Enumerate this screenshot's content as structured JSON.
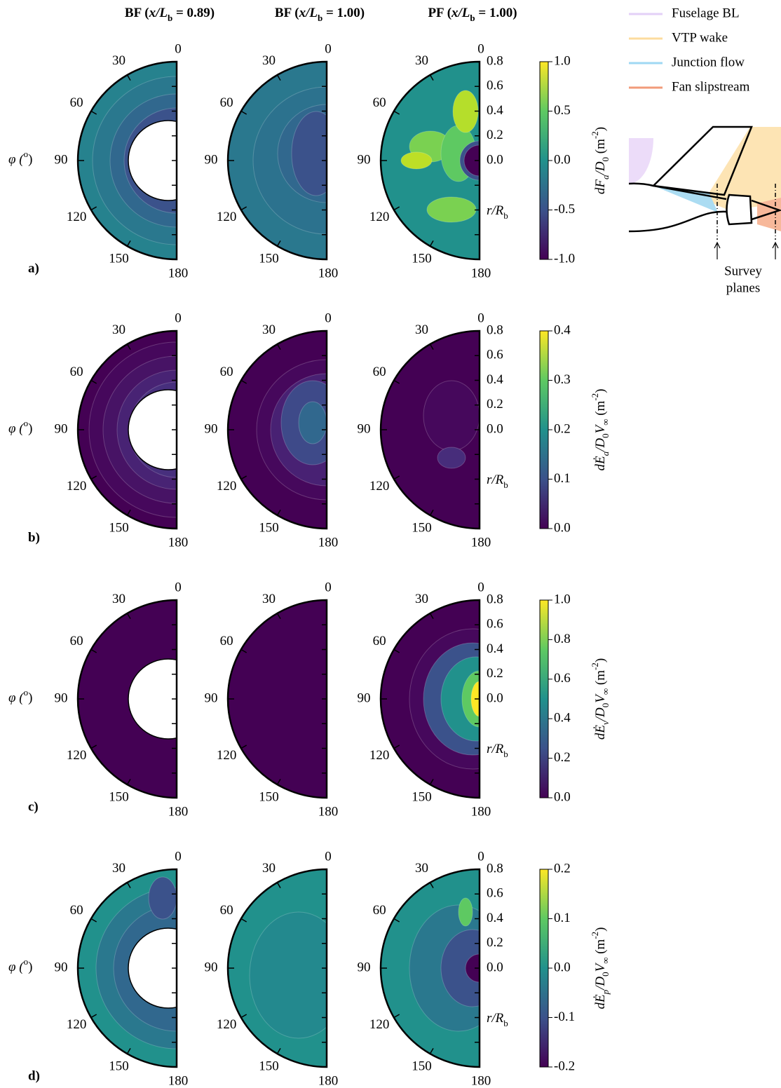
{
  "column_headers": [
    [
      "BF (",
      "x/L",
      "b",
      " = 0.89)"
    ],
    [
      "BF (",
      "x/L",
      "b",
      " = 1.00)"
    ],
    [
      "PF (",
      "x/L",
      "b",
      " = 1.00)"
    ]
  ],
  "angle_ticks": [
    0,
    30,
    60,
    90,
    120,
    150,
    180
  ],
  "radial_ticks": [
    "0.8",
    "0.6",
    "0.4",
    "0.2",
    "0.0"
  ],
  "radial_label": [
    "r/R",
    "b"
  ],
  "phi_label": [
    "φ (",
    "o",
    ") "
  ],
  "rows": [
    {
      "label": "a)",
      "colorbar_ticks": [
        "1.0",
        "0.5",
        "0.0",
        "-0.5",
        "-1.0"
      ],
      "colorbar_label": [
        "dF",
        "a",
        "/D",
        "0",
        " (m",
        "-2",
        ")"
      ]
    },
    {
      "label": "b)",
      "colorbar_ticks": [
        "0.4",
        "0.3",
        "0.2",
        "0.1",
        "0.0"
      ],
      "colorbar_label": [
        "dĖ",
        "a",
        "/D",
        "0",
        "V",
        "∞",
        " (m",
        "-2",
        ")"
      ]
    },
    {
      "label": "c)",
      "colorbar_ticks": [
        "1.0",
        "0.8",
        "0.6",
        "0.4",
        "0.2",
        "0.0"
      ],
      "colorbar_label": [
        "dĖ",
        "v",
        "/D",
        "0",
        "V",
        "∞",
        " (m",
        "-2",
        ")"
      ]
    },
    {
      "label": "d)",
      "colorbar_ticks": [
        "0.2",
        "0.1",
        "0.0",
        "-0.1",
        "-0.2"
      ],
      "colorbar_label": [
        "dĖ",
        "p",
        "/D",
        "0",
        "V",
        "∞",
        " (m",
        "-2",
        ")"
      ]
    }
  ],
  "legend": [
    {
      "name": "Fuselage BL",
      "color": "#e3d0f7"
    },
    {
      "name": "VTP wake",
      "color": "#fcdc9f"
    },
    {
      "name": "Junction flow",
      "color": "#9fd8f3"
    },
    {
      "name": "Fan slipstream",
      "color": "#f29b7a"
    }
  ],
  "diagram_label": [
    "Survey",
    "planes"
  ]
}
